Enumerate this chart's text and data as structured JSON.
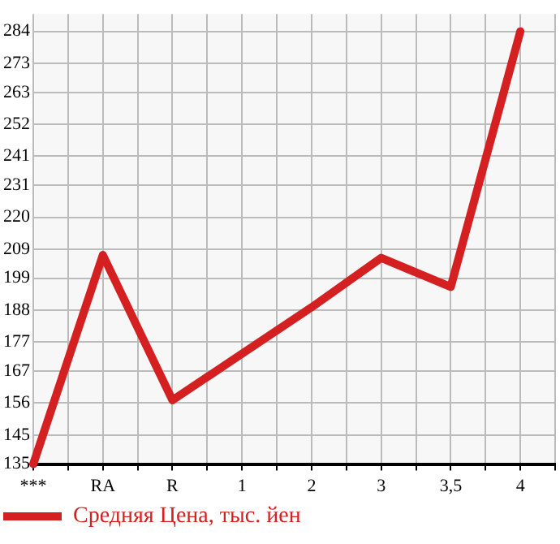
{
  "chart_data": {
    "type": "line",
    "categories": [
      "***",
      "RA",
      "R",
      "1",
      "2",
      "3",
      "3,5",
      "4"
    ],
    "series": [
      {
        "name": "Средняя Цена, тыс. йен",
        "color": "#d42020",
        "values": [
          135,
          207,
          157,
          173,
          189,
          206,
          196,
          284
        ]
      }
    ],
    "ylim": [
      135,
      290
    ],
    "yticks": [
      135,
      145,
      156,
      167,
      177,
      188,
      199,
      209,
      220,
      231,
      241,
      252,
      263,
      273,
      284
    ],
    "grid": true,
    "legend": "bottom left",
    "marker": "none",
    "line_style": "solid"
  }
}
